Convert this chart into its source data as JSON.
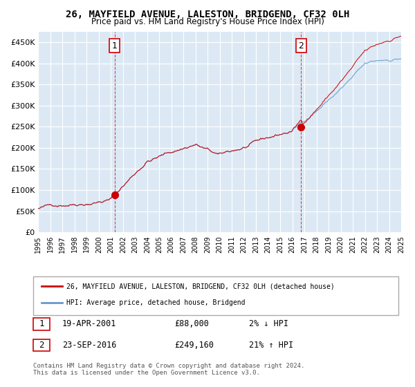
{
  "title": "26, MAYFIELD AVENUE, LALESTON, BRIDGEND, CF32 0LH",
  "subtitle": "Price paid vs. HM Land Registry's House Price Index (HPI)",
  "red_label": "26, MAYFIELD AVENUE, LALESTON, BRIDGEND, CF32 0LH (detached house)",
  "blue_label": "HPI: Average price, detached house, Bridgend",
  "sale1_date": "19-APR-2001",
  "sale1_price": 88000,
  "sale1_pct": "2% ↓ HPI",
  "sale2_date": "23-SEP-2016",
  "sale2_price": 249160,
  "sale2_pct": "21% ↑ HPI",
  "sale1_year": 2001.3,
  "sale2_year": 2016.73,
  "ylim_min": 0,
  "ylim_max": 475000,
  "xmin": 1995,
  "xmax": 2025,
  "background_color": "#dce9f5",
  "grid_color": "#ffffff",
  "red_color": "#cc0000",
  "blue_color": "#6699cc",
  "dashed_color": "#cc0000",
  "footer": "Contains HM Land Registry data © Crown copyright and database right 2024.\nThis data is licensed under the Open Government Licence v3.0."
}
